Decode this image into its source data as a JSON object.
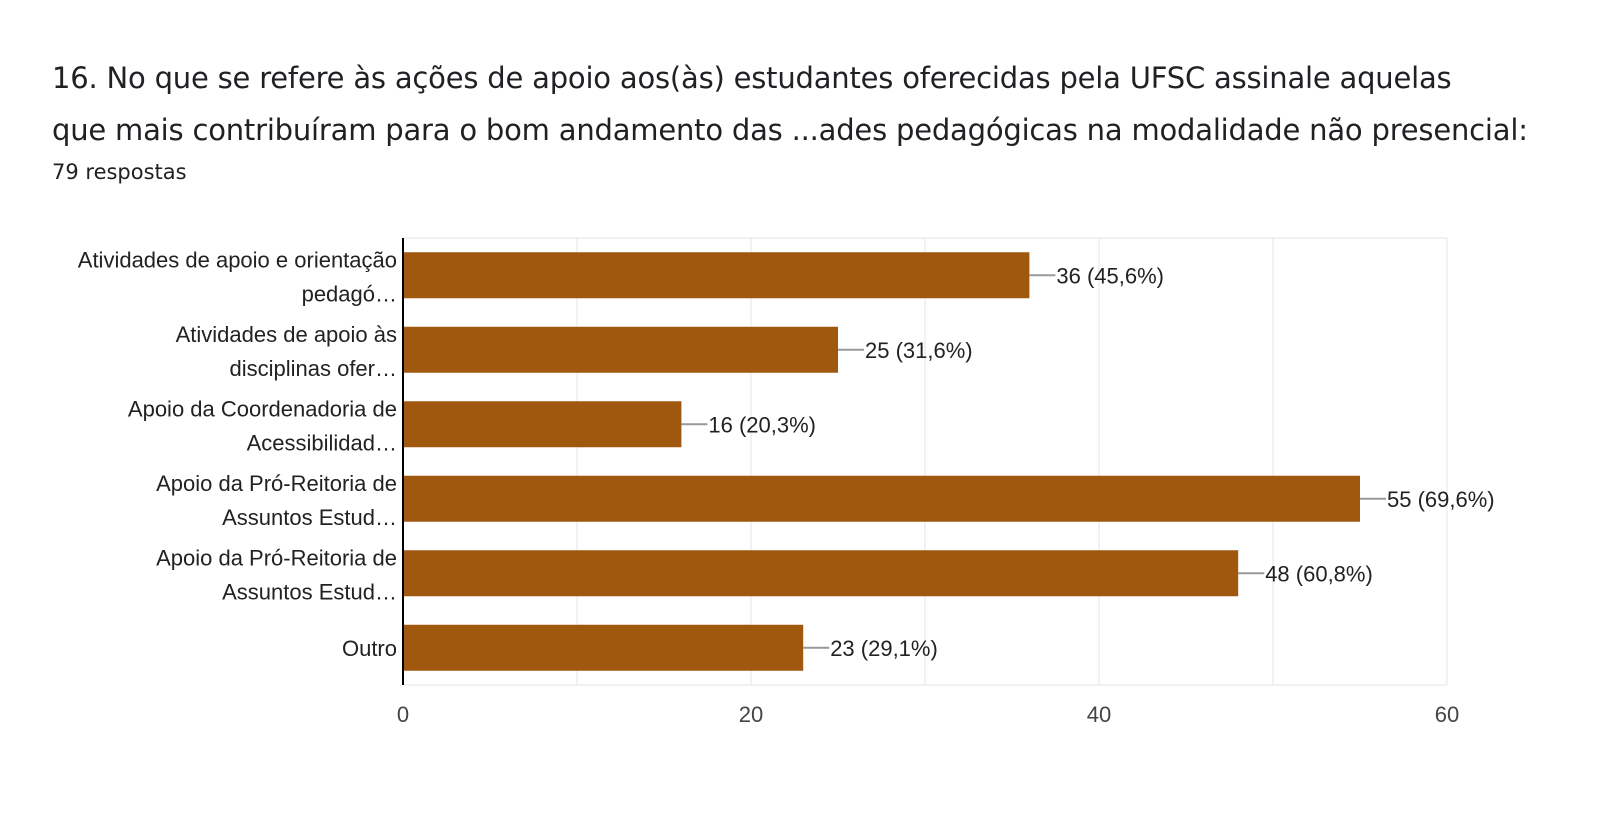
{
  "header": {
    "title_line1": "16. No que se refere às ações de apoio aos(às) estudantes oferecidas pela UFSC assinale aquelas",
    "title_line2": "que mais contribuíram para o bom andamento das ...ades pedagógicas na modalidade não presencial:",
    "responses": "79 respostas"
  },
  "chart_data": {
    "type": "bar",
    "orientation": "horizontal",
    "categories": [
      [
        "Atividades de apoio e orientação",
        "pedagó…"
      ],
      [
        "Atividades de apoio às",
        "disciplinas ofer…"
      ],
      [
        "Apoio da Coordenadoria de",
        "Acessibilidad…"
      ],
      [
        "Apoio da Pró-Reitoria de",
        "Assuntos Estud…"
      ],
      [
        "Apoio da Pró-Reitoria de",
        "Assuntos Estud…"
      ],
      [
        "Outro"
      ]
    ],
    "values": [
      36,
      25,
      16,
      55,
      48,
      23
    ],
    "value_labels": [
      "36 (45,6%)",
      "25 (31,6%)",
      "16 (20,3%)",
      "55 (69,6%)",
      "48 (60,8%)",
      "23 (29,1%)"
    ],
    "xticks": [
      "0",
      "20",
      "40",
      "60"
    ],
    "xlim": [
      0,
      60
    ],
    "grid": true,
    "colors": {
      "bar": "#a0570e",
      "grid": "#e6e6e6",
      "axis": "#000000",
      "leader": "#999999"
    }
  }
}
